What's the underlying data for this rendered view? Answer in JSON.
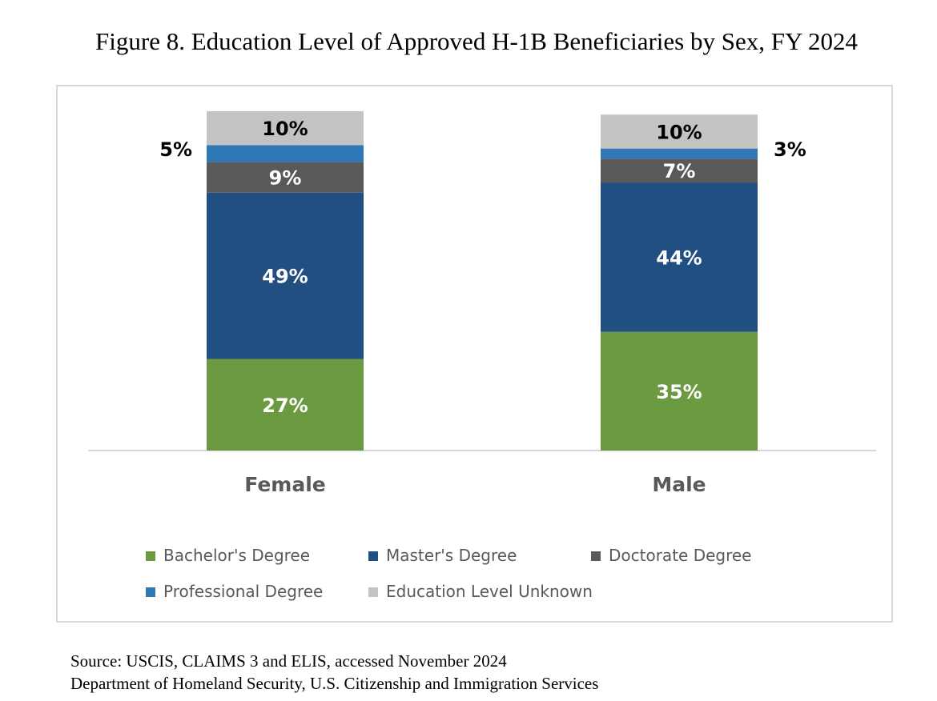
{
  "figure": {
    "title": "Figure 8. Education Level of Approved H-1B Beneficiaries by Sex, FY 2024"
  },
  "chart_data": {
    "type": "bar",
    "stacked": true,
    "title": "Figure 8. Education Level of Approved H-1B Beneficiaries by Sex, FY 2024",
    "xlabel": "",
    "ylabel": "",
    "ylim": [
      0,
      100
    ],
    "grid": false,
    "legend_position": "bottom",
    "categories": [
      "Female",
      "Male"
    ],
    "series": [
      {
        "name": "Bachelor's Degree",
        "color": "#6b9a41",
        "values": [
          27,
          35
        ],
        "labels": [
          "27%",
          "35%"
        ]
      },
      {
        "name": "Master's Degree",
        "color": "#224f82",
        "values": [
          49,
          44
        ],
        "labels": [
          "49%",
          "44%"
        ]
      },
      {
        "name": "Doctorate Degree",
        "color": "#595959",
        "values": [
          9,
          7
        ],
        "labels": [
          "9%",
          "7%"
        ]
      },
      {
        "name": "Professional Degree",
        "color": "#2f77b5",
        "values": [
          5,
          3
        ],
        "labels": [
          "5%",
          "3%"
        ]
      },
      {
        "name": "Education Level Unknown",
        "color": "#c3c3c3",
        "values": [
          10,
          10
        ],
        "labels": [
          "10%",
          "10%"
        ]
      }
    ]
  },
  "source": {
    "line1": "Source: USCIS, CLAIMS 3 and ELIS, accessed November 2024",
    "line2": "Department of Homeland Security, U.S. Citizenship and Immigration Services"
  }
}
